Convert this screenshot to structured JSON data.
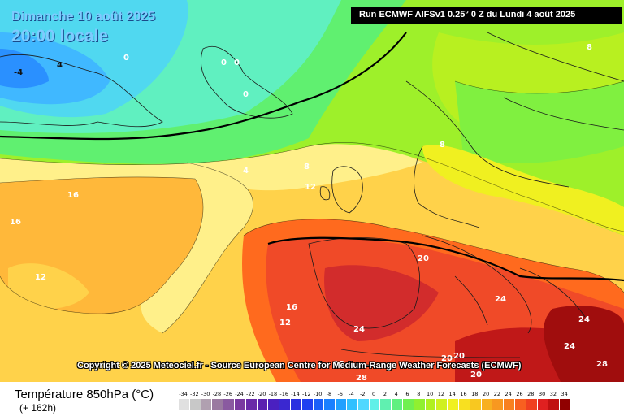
{
  "header": {
    "date": "Dimanche 10 août 2025",
    "time": "20:00 locale",
    "run": "Run ECMWF AIFSv1 0.25° 0 Z du Lundi 4 août 2025"
  },
  "copyright": "Copyright © 2025 Meteociel.fr - Source European Centre for Medium-Range Weather Forecasts (ECMWF)",
  "isotherm_labels": [
    {
      "text": "-4",
      "color": "dark"
    },
    {
      "text": "4",
      "color": "dark"
    },
    {
      "text": "0",
      "color": "white"
    },
    {
      "text": "0",
      "color": "white"
    },
    {
      "text": "0",
      "color": "white"
    },
    {
      "text": "0",
      "color": "white"
    },
    {
      "text": "8",
      "color": "white"
    },
    {
      "text": "4",
      "color": "white"
    },
    {
      "text": "8",
      "color": "white"
    },
    {
      "text": "12",
      "color": "white"
    },
    {
      "text": "8",
      "color": "white"
    },
    {
      "text": "16",
      "color": "white"
    },
    {
      "text": "16",
      "color": "white"
    },
    {
      "text": "12",
      "color": "white"
    },
    {
      "text": "16",
      "color": "white"
    },
    {
      "text": "12",
      "color": "white"
    },
    {
      "text": "20",
      "color": "white"
    },
    {
      "text": "24",
      "color": "white"
    },
    {
      "text": "24",
      "color": "white"
    },
    {
      "text": "24",
      "color": "white"
    },
    {
      "text": "24",
      "color": "white"
    },
    {
      "text": "20",
      "color": "white"
    },
    {
      "text": "20",
      "color": "white"
    },
    {
      "text": "20",
      "color": "white"
    },
    {
      "text": "28",
      "color": "white"
    },
    {
      "text": "28",
      "color": "white"
    },
    {
      "text": "28",
      "color": "white"
    }
  ],
  "legend": {
    "variable": "Température 850hPa (°C)",
    "lead": "(+ 162h)",
    "scale_values": [
      "-34",
      "-32",
      "-30",
      "-28",
      "-26",
      "-24",
      "-22",
      "-20",
      "-18",
      "-16",
      "-14",
      "-12",
      "-10",
      "-8",
      "-6",
      "-4",
      "-2",
      "0",
      "2",
      "4",
      "6",
      "8",
      "10",
      "12",
      "14",
      "16",
      "18",
      "20",
      "22",
      "24",
      "26",
      "28",
      "30",
      "32",
      "34"
    ],
    "scale_colors": [
      "#e0e0e0",
      "#c8c8c8",
      "#b0a0b0",
      "#9a7aa0",
      "#8a5aa0",
      "#7a3aa0",
      "#6a2aa8",
      "#5a20b0",
      "#4a20c0",
      "#3a28d0",
      "#2a30e0",
      "#2040f0",
      "#1a60f8",
      "#1a80ff",
      "#20a0ff",
      "#30c0ff",
      "#50d8ff",
      "#60f0e8",
      "#60f0b0",
      "#60f080",
      "#70f050",
      "#90f030",
      "#b0f020",
      "#d0f020",
      "#f0f020",
      "#f8e020",
      "#f8c820",
      "#f8b020",
      "#f89820",
      "#f88020",
      "#f86020",
      "#f04020",
      "#e02020",
      "#c01010",
      "#900000"
    ]
  }
}
